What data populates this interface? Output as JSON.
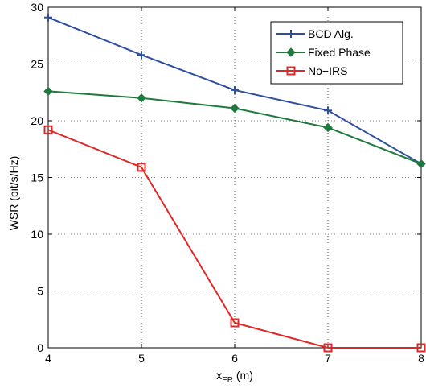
{
  "chart_data": {
    "type": "line",
    "x": [
      4,
      5,
      6,
      7,
      8
    ],
    "xlim": [
      4,
      8
    ],
    "ylim": [
      0,
      30
    ],
    "xticks": [
      "4",
      "5",
      "6",
      "7",
      "8"
    ],
    "yticks": [
      "0",
      "5",
      "10",
      "15",
      "20",
      "25",
      "30"
    ],
    "xlabel_main": "x",
    "xlabel_sub": "ER",
    "xlabel_unit": " (m)",
    "ylabel": "WSR (bit/s/Hz)",
    "grid": true,
    "legend_position": "top-right",
    "series": [
      {
        "name": "BCD Alg.",
        "values": [
          29.1,
          25.8,
          22.7,
          20.9,
          16.2
        ],
        "color": "#2e4f9f",
        "marker": "plus"
      },
      {
        "name": "Fixed Phase",
        "values": [
          22.6,
          22.0,
          21.1,
          19.4,
          16.2
        ],
        "color": "#1e7a3c",
        "marker": "diamond"
      },
      {
        "name": "No−IRS",
        "values": [
          19.2,
          15.9,
          2.2,
          0.0,
          0.0
        ],
        "color": "#e02828",
        "marker": "square"
      }
    ]
  }
}
